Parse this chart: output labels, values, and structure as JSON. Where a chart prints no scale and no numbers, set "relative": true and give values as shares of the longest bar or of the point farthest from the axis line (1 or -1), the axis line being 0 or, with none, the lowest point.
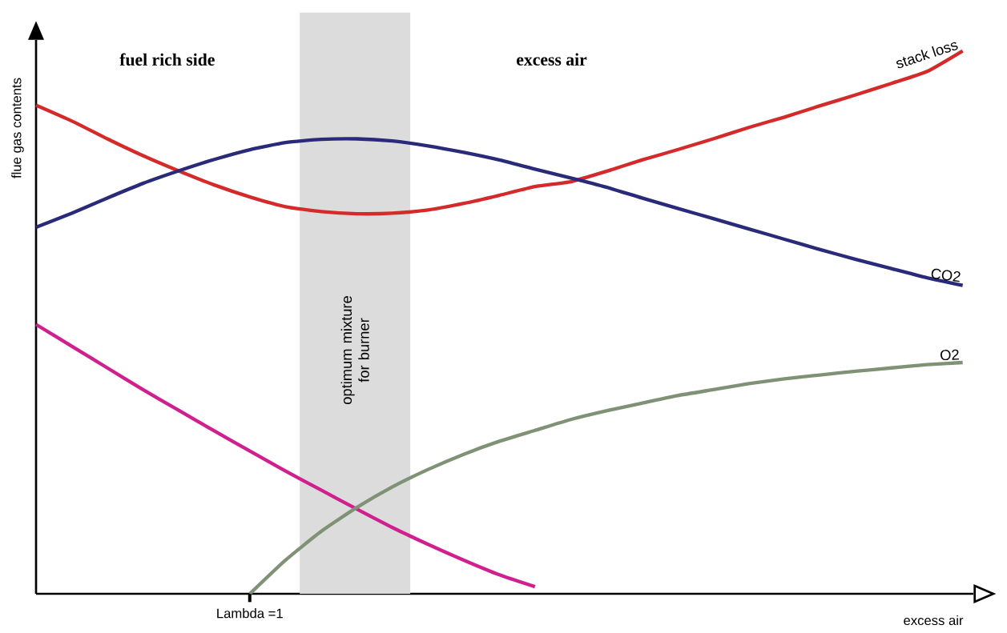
{
  "chart_data": {
    "type": "line",
    "relative": true,
    "xlabel": "excess air",
    "ylabel": "flue gas contents",
    "categories": [
      null,
      null,
      null,
      null,
      null,
      null,
      null,
      null,
      null,
      null,
      null,
      null,
      null,
      null,
      null,
      null,
      null,
      null,
      null,
      null,
      null,
      null,
      null,
      null,
      null,
      null,
      null
    ],
    "annotations": [
      "fuel rich side",
      "excess air",
      "Lambda =1",
      "optimum mixture for burner"
    ],
    "series": [
      {
        "name": "stack loss",
        "color": "#d42a2a",
        "values": [
          0.9,
          0.871,
          0.838,
          0.807,
          0.779,
          0.753,
          0.731,
          0.713,
          0.704,
          0.7,
          0.701,
          0.707,
          0.719,
          0.734,
          0.75,
          0.759,
          0.778,
          0.799,
          0.818,
          0.838,
          0.859,
          0.878,
          0.899,
          0.919,
          0.94,
          0.962,
          1.0
        ]
      },
      {
        "name": "CO2",
        "color": "#2a2a7a",
        "values": [
          0.675,
          0.701,
          0.729,
          0.756,
          0.779,
          0.8,
          0.818,
          0.831,
          0.837,
          0.838,
          0.834,
          0.825,
          0.813,
          0.799,
          0.782,
          0.766,
          0.749,
          0.729,
          0.71,
          0.691,
          0.672,
          0.653,
          0.634,
          0.616,
          0.599,
          0.582,
          0.568
        ]
      },
      {
        "color": "#d01f8f",
        "values": [
          0.496,
          0.456,
          0.416,
          0.376,
          0.338,
          0.3,
          0.263,
          0.226,
          0.191,
          0.156,
          0.122,
          0.091,
          0.062,
          0.035,
          0.013,
          null,
          null,
          null,
          null,
          null,
          null,
          null,
          null,
          null,
          null,
          null,
          null
        ]
      },
      {
        "name": "O2",
        "color": "#7f9275",
        "values": [
          null,
          null,
          null,
          null,
          null,
          null,
          0,
          0.062,
          0.115,
          0.159,
          0.197,
          0.229,
          0.257,
          0.281,
          0.301,
          0.321,
          0.337,
          0.351,
          0.365,
          0.376,
          0.387,
          0.396,
          0.403,
          0.41,
          0.416,
          0.422,
          0.426
        ]
      }
    ]
  }
}
